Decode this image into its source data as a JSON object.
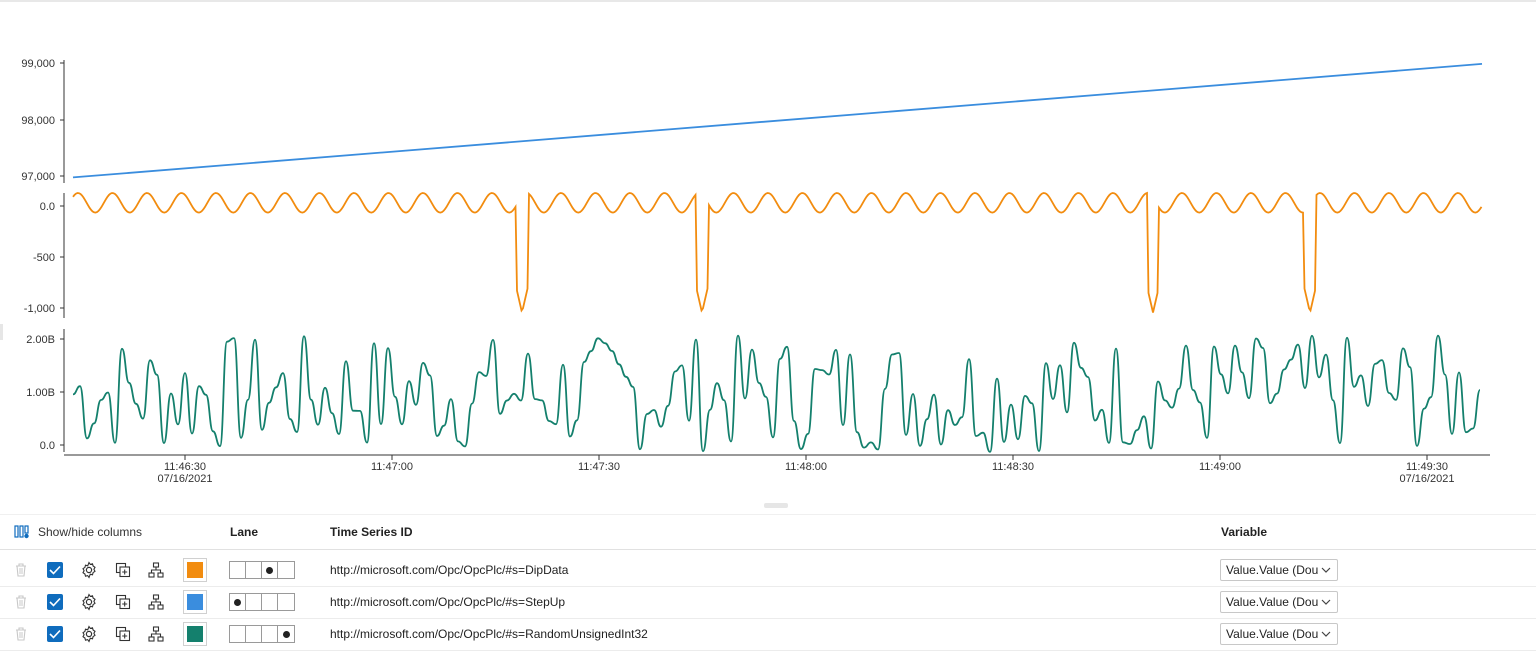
{
  "chart_data": [
    {
      "type": "line",
      "title": "",
      "series": [
        {
          "name": "StepUp",
          "color": "#3a8dde",
          "x": [
            "11:46:12",
            "11:49:42"
          ],
          "values": [
            97050,
            99080
          ]
        }
      ],
      "y_ticks": [
        "99,000",
        "98,000",
        "97,000"
      ],
      "ylim": [
        96950,
        99150
      ]
    },
    {
      "type": "line",
      "series": [
        {
          "name": "DipData",
          "color": "#f28c0f",
          "description_free": true
        }
      ],
      "y_ticks": [
        "0.0",
        "-500",
        "-1,000"
      ],
      "ylim": [
        -1050,
        100
      ]
    },
    {
      "type": "line",
      "series": [
        {
          "name": "RandomUnsignedInt32",
          "color": "#14806d"
        }
      ],
      "y_ticks": [
        "2.00B",
        "1.00B",
        "0.0"
      ],
      "ylim": [
        0,
        2200000000
      ]
    }
  ],
  "x_axis": {
    "ticks": [
      {
        "time": "11:46:30",
        "date": "07/16/2021"
      },
      {
        "time": "11:47:00",
        "date": ""
      },
      {
        "time": "11:47:30",
        "date": ""
      },
      {
        "time": "11:48:00",
        "date": ""
      },
      {
        "time": "11:48:30",
        "date": ""
      },
      {
        "time": "11:49:00",
        "date": ""
      },
      {
        "time": "11:49:30",
        "date": "07/16/2021"
      }
    ]
  },
  "table": {
    "show_hide_label": "Show/hide columns",
    "columns": {
      "lane": "Lane",
      "tsid": "Time Series ID",
      "variable": "Variable"
    },
    "rows": [
      {
        "color": "#f28c0f",
        "lane": 3,
        "tsid": "http://microsoft.com/Opc/OpcPlc/#s=DipData",
        "variable": "Value.Value (Dou"
      },
      {
        "color": "#3a8dde",
        "lane": 1,
        "tsid": "http://microsoft.com/Opc/OpcPlc/#s=StepUp",
        "variable": "Value.Value (Dou"
      },
      {
        "color": "#14806d",
        "lane": 4,
        "tsid": "http://microsoft.com/Opc/OpcPlc/#s=RandomUnsignedInt32",
        "variable": "Value.Value (Dou"
      }
    ]
  },
  "icons": {
    "trash": "trash-icon",
    "settings": "gear-icon",
    "clone": "clone-icon",
    "hierarchy": "hierarchy-icon",
    "columns": "columns-icon",
    "chevron": "chevron-down-icon"
  }
}
